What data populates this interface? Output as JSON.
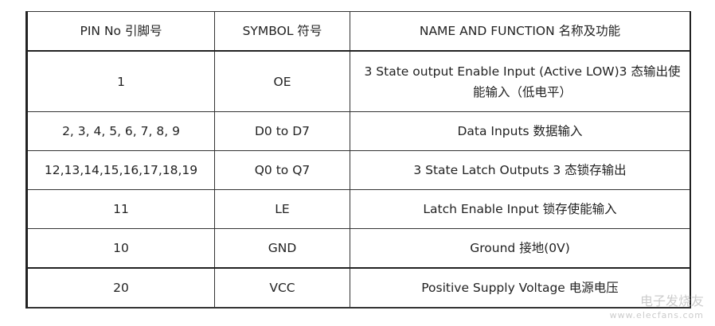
{
  "table": {
    "headers": [
      "PIN No  引脚号",
      "SYMBOL 符号",
      "NAME AND FUNCTION 名称及功能"
    ],
    "rows": [
      [
        "1",
        "OE",
        "3 State output Enable Input (Active LOW)3 态输出使能输入（低电平）"
      ],
      [
        "2, 3, 4, 5, 6, 7, 8, 9",
        "D0 to D7",
        "Data Inputs 数据输入"
      ],
      [
        "12,13,14,15,16,17,18,19",
        "Q0 to Q7",
        "3 State Latch Outputs 3 态锁存输出"
      ],
      [
        "11",
        "LE",
        "Latch Enable Input  锁存使能输入"
      ],
      [
        "10",
        "GND",
        "Ground 接地(0V)"
      ],
      [
        "20",
        "VCC",
        "Positive Supply Voltage 电源电压"
      ]
    ]
  },
  "watermark": {
    "name": "电子发烧友",
    "url": "www.elecfans.com"
  }
}
